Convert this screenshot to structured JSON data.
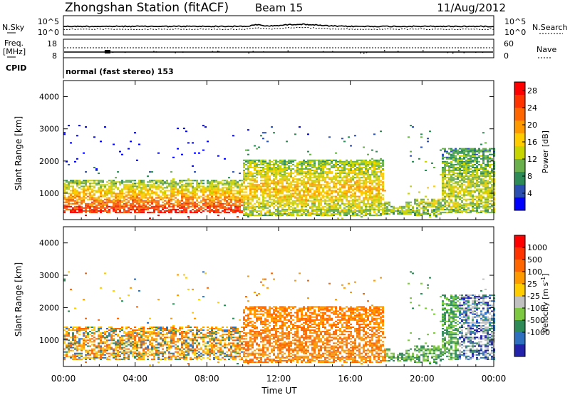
{
  "header": {
    "station": "Zhongshan Station (fitACF)",
    "beam": "Beam 15",
    "date": "11/Aug/2012"
  },
  "strips": {
    "nsky_label": "N.Sky",
    "nsky_ticks": [
      "10^5",
      "10^0"
    ],
    "nsearch_label": "N.Search",
    "nsearch_ticks": [
      "10^5",
      "10^0"
    ],
    "freq_label": "Freq.",
    "freq_unit": "[MHz]",
    "freq_ticks": [
      "18",
      "8"
    ],
    "nave_label": "Nave",
    "nave_ticks": [
      "60",
      "0"
    ],
    "cpid_label": "CPID",
    "cpid_value": "normal (fast stereo) 153"
  },
  "chart_data": [
    {
      "type": "heatmap",
      "name": "power",
      "ylabel": "Slant Range [km]",
      "xlabel": "",
      "xlim": [
        0,
        24
      ],
      "ylim": [
        180,
        4500
      ],
      "y_ticks": [
        "1000",
        "2000",
        "3000",
        "4000"
      ],
      "colorbar": {
        "label": "Power [dB]",
        "ticks": [
          "4",
          "8",
          "12",
          "16",
          "20",
          "24",
          "28"
        ],
        "range": [
          0,
          30
        ],
        "colors": [
          "#0000ff",
          "#2a4fb0",
          "#2e8b57",
          "#6ab04c",
          "#c8d400",
          "#ffcc00",
          "#ff9900",
          "#ff6600",
          "#ff3300",
          "#ff0000"
        ]
      }
    },
    {
      "type": "heatmap",
      "name": "velocity",
      "ylabel": "Slant Range [km]",
      "xlabel": "Time UT",
      "xlim": [
        0,
        24
      ],
      "ylim": [
        180,
        4500
      ],
      "y_ticks": [
        "1000",
        "2000",
        "3000",
        "4000"
      ],
      "x_ticks": [
        "00:00",
        "04:00",
        "08:00",
        "12:00",
        "16:00",
        "20:00",
        "00:00"
      ],
      "colorbar": {
        "label": "Velocity [m s",
        "label_sup": "-1",
        "label_end": "]",
        "ticks": [
          "1000",
          "500",
          "100",
          "25",
          "-25",
          "-100",
          "-500",
          "-1000"
        ],
        "colors": [
          "#2222aa",
          "#2e6fbf",
          "#2e8b57",
          "#7cc840",
          "#c0c0c0",
          "#ffcc00",
          "#ff9900",
          "#ff6600",
          "#ff3300",
          "#ff0000"
        ]
      }
    }
  ]
}
